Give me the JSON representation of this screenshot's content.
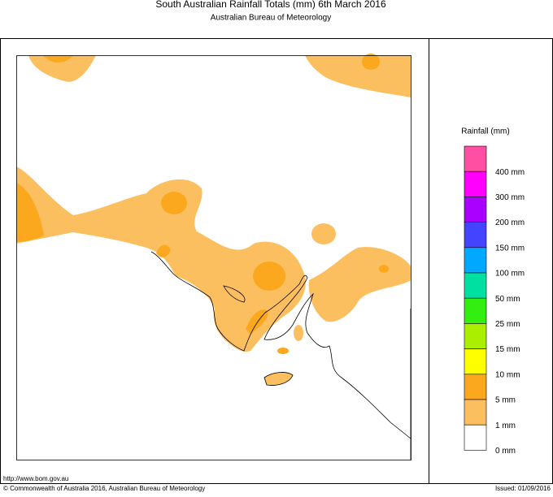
{
  "header": {
    "title": "South Australian Rainfall Totals (mm)   6th March 2016",
    "subtitle": "Australian Bureau of Meteorology"
  },
  "legend": {
    "title": "Rainfall (mm)",
    "colors": [
      "#ff4fa3",
      "#ff00ff",
      "#aa00ff",
      "#4444ff",
      "#00a8ff",
      "#00e0a0",
      "#33ee11",
      "#aaee00",
      "#ffff00",
      "#fba81e",
      "#fcbf5f",
      "#ffffff"
    ],
    "labels": [
      "400 mm",
      "300 mm",
      "200 mm",
      "150 mm",
      "100 mm",
      "50 mm",
      "25 mm",
      "15 mm",
      "10 mm",
      "5 mm",
      "1 mm",
      "0 mm"
    ]
  },
  "footer": {
    "url": "http://www.bom.gov.au",
    "copyright": "© Commonwealth of Australia 2016, Australian Bureau of Meteorology",
    "issued": "Issued: 01/09/2016"
  }
}
